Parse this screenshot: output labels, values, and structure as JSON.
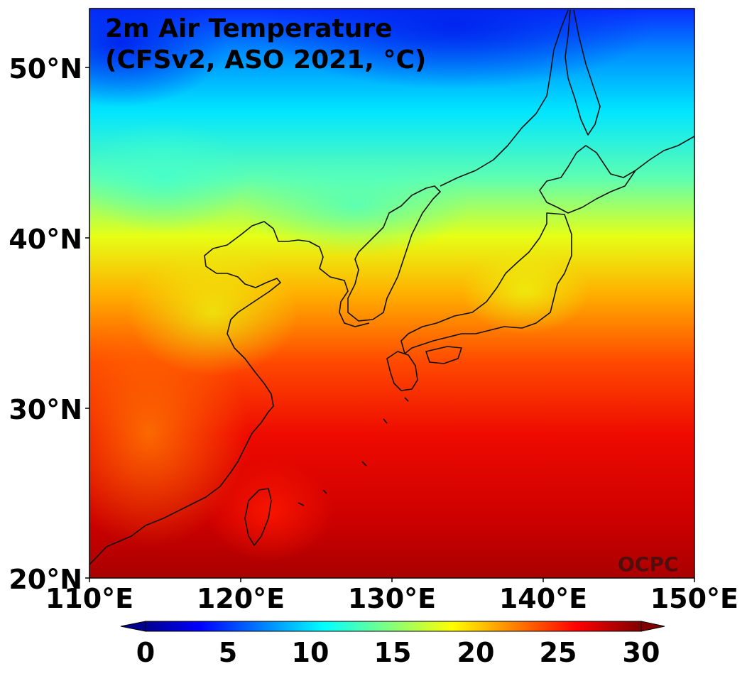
{
  "title_line1": "2m Air Temperature",
  "title_line2": "(CFSv2, ASO 2021, °C)",
  "watermark": "OCPC",
  "lat_labels": [
    "50°N",
    "40°N",
    "30°N",
    "20°N"
  ],
  "lon_labels": [
    "110°E",
    "120°E",
    "130°E",
    "140°E",
    "150°E"
  ],
  "colorbar": {
    "ticks": [
      "0",
      "5",
      "10",
      "15",
      "20",
      "25",
      "30"
    ],
    "min": 0,
    "max": 30,
    "extend": "both",
    "colormap": "jet"
  },
  "map_extent": {
    "lon_min": 110,
    "lon_max": 150,
    "lat_min": 20,
    "lat_max": 53.5
  }
}
